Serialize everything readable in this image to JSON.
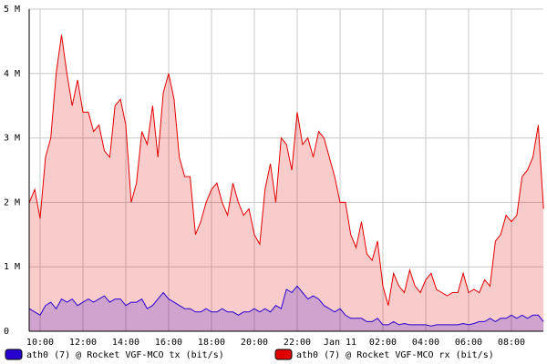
{
  "chart_data": {
    "type": "area",
    "x": [
      9.5,
      9.75,
      10,
      10.25,
      10.5,
      10.75,
      11,
      11.25,
      11.5,
      11.75,
      12,
      12.25,
      12.5,
      12.75,
      13,
      13.25,
      13.5,
      13.75,
      14,
      14.25,
      14.5,
      14.75,
      15,
      15.25,
      15.5,
      15.75,
      16,
      16.25,
      16.5,
      16.75,
      17,
      17.25,
      17.5,
      17.75,
      18,
      18.25,
      18.5,
      18.75,
      19,
      19.25,
      19.5,
      19.75,
      20,
      20.25,
      20.5,
      20.75,
      21,
      21.25,
      21.5,
      21.75,
      22,
      22.25,
      22.5,
      22.75,
      23,
      23.25,
      23.5,
      23.75,
      24,
      24.25,
      24.5,
      24.75,
      25,
      25.25,
      25.5,
      25.75,
      26,
      26.25,
      26.5,
      26.75,
      27,
      27.25,
      27.5,
      27.75,
      28,
      28.25,
      28.5,
      28.75,
      29,
      29.25,
      29.5,
      29.75,
      30,
      30.25,
      30.5,
      30.75,
      31,
      31.25,
      31.5,
      31.75,
      32,
      32.25,
      32.5,
      32.75,
      33,
      33.25,
      33.5
    ],
    "series": [
      {
        "name": "ath0 (7) @ Rocket VGF-MCO rx (bit/s)",
        "color": "#e00000",
        "values": [
          2.0,
          2.2,
          1.75,
          2.7,
          3.0,
          4.0,
          4.6,
          4.0,
          3.5,
          3.9,
          3.4,
          3.4,
          3.1,
          3.2,
          2.8,
          2.7,
          3.5,
          3.6,
          3.2,
          2.0,
          2.3,
          3.1,
          2.9,
          3.5,
          2.7,
          3.7,
          4.0,
          3.6,
          2.7,
          2.4,
          2.4,
          1.5,
          1.7,
          2.0,
          2.2,
          2.3,
          2.0,
          1.8,
          2.3,
          2.0,
          1.8,
          1.9,
          1.5,
          1.35,
          2.2,
          2.6,
          2.0,
          3.0,
          2.9,
          2.5,
          3.4,
          2.9,
          3.0,
          2.7,
          3.1,
          3.0,
          2.7,
          2.4,
          2.0,
          2.0,
          1.5,
          1.3,
          1.7,
          1.2,
          1.1,
          1.4,
          0.7,
          0.4,
          0.9,
          0.7,
          0.6,
          0.95,
          0.7,
          0.6,
          0.8,
          0.9,
          0.65,
          0.6,
          0.55,
          0.6,
          0.6,
          0.9,
          0.6,
          0.65,
          0.6,
          0.8,
          0.7,
          1.4,
          1.5,
          1.8,
          1.7,
          1.8,
          2.4,
          2.5,
          2.7,
          3.2,
          1.9
        ]
      },
      {
        "name": "ath0 (7) @ Rocket VGF-MCO tx (bit/s)",
        "color": "#2a00d0",
        "values": [
          0.35,
          0.3,
          0.25,
          0.4,
          0.45,
          0.35,
          0.5,
          0.45,
          0.5,
          0.4,
          0.45,
          0.5,
          0.45,
          0.5,
          0.55,
          0.45,
          0.5,
          0.5,
          0.4,
          0.45,
          0.45,
          0.5,
          0.35,
          0.4,
          0.5,
          0.6,
          0.5,
          0.45,
          0.4,
          0.35,
          0.35,
          0.3,
          0.3,
          0.35,
          0.3,
          0.3,
          0.35,
          0.3,
          0.3,
          0.25,
          0.3,
          0.3,
          0.35,
          0.3,
          0.35,
          0.3,
          0.4,
          0.35,
          0.65,
          0.6,
          0.7,
          0.6,
          0.5,
          0.55,
          0.5,
          0.4,
          0.35,
          0.3,
          0.35,
          0.25,
          0.2,
          0.2,
          0.2,
          0.15,
          0.15,
          0.2,
          0.1,
          0.1,
          0.15,
          0.1,
          0.12,
          0.1,
          0.1,
          0.1,
          0.1,
          0.08,
          0.1,
          0.1,
          0.1,
          0.1,
          0.1,
          0.12,
          0.1,
          0.12,
          0.15,
          0.15,
          0.2,
          0.15,
          0.2,
          0.2,
          0.25,
          0.2,
          0.25,
          0.2,
          0.25,
          0.25,
          0.15
        ]
      }
    ],
    "xlim": [
      9.49,
      33.49
    ],
    "xticks": [
      {
        "value": 10,
        "label": "10:00"
      },
      {
        "value": 12,
        "label": "12:00"
      },
      {
        "value": 14,
        "label": "14:00"
      },
      {
        "value": 16,
        "label": "16:00"
      },
      {
        "value": 18,
        "label": "18:00"
      },
      {
        "value": 20,
        "label": "20:00"
      },
      {
        "value": 22,
        "label": "22:00"
      },
      {
        "value": 24,
        "label": "Jan 11"
      },
      {
        "value": 26,
        "label": "02:00"
      },
      {
        "value": 28,
        "label": "04:00"
      },
      {
        "value": 30,
        "label": "06:00"
      },
      {
        "value": 32,
        "label": "08:00"
      }
    ],
    "ylim": [
      0,
      5
    ],
    "yticks": [
      0,
      {
        "value": 1,
        "label": "1 M"
      },
      {
        "value": 2,
        "label": "2 M"
      },
      {
        "value": 3,
        "label": "3 M"
      },
      {
        "value": 4,
        "label": "4 M"
      },
      {
        "value": 5,
        "label": "5 M"
      }
    ],
    "grid": true
  }
}
